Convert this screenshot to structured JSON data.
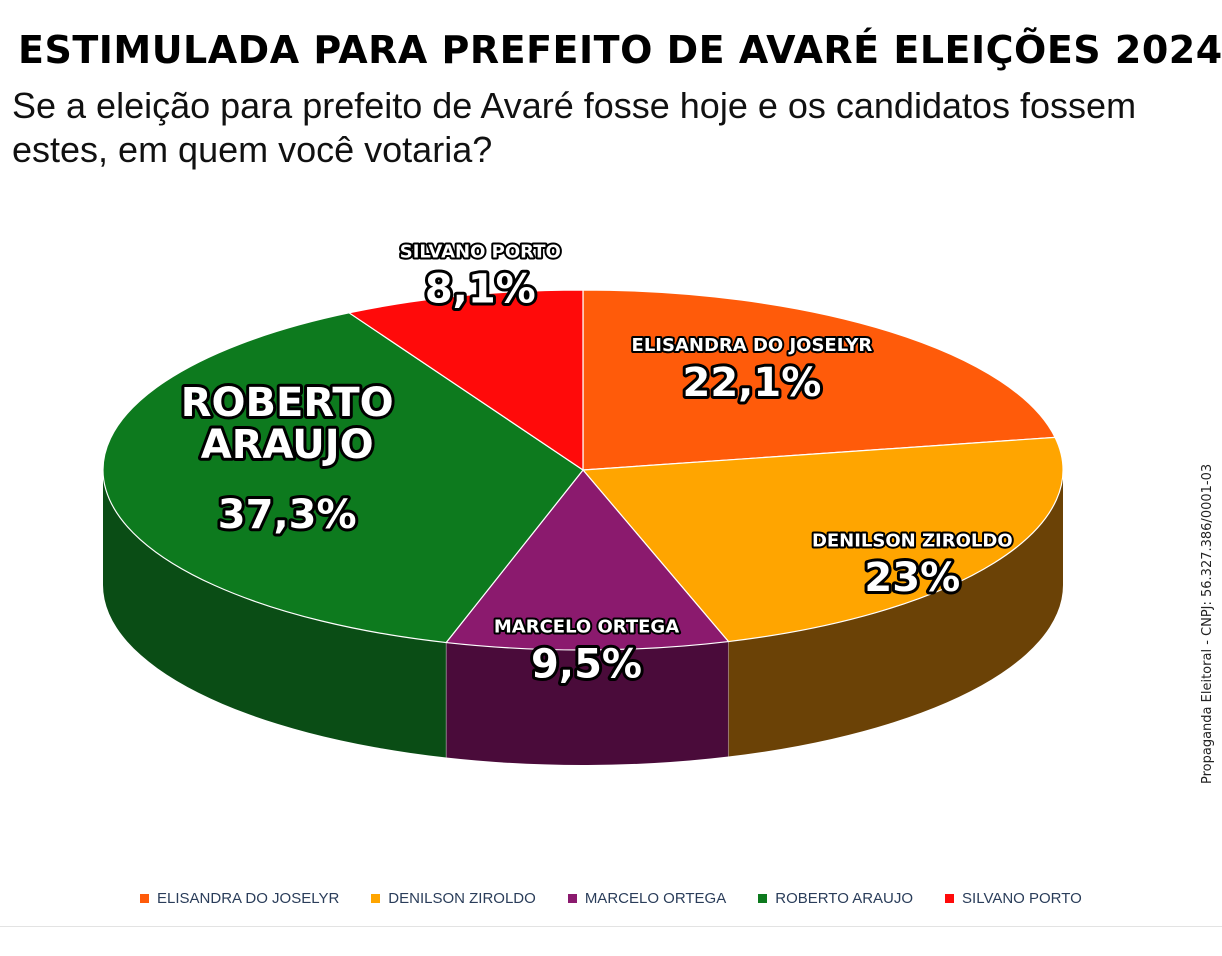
{
  "title": "ESTIMULADA PARA PREFEITO DE AVARÉ ELEIÇÕES 2024",
  "subtitle": "Se a eleição para prefeito de Avaré fosse hoje e os candidatos fossem estes, em quem você votaria?",
  "side_note": "Propaganda Eleitoral - CNPJ: 56.327.386/0001-03",
  "chart_data": {
    "type": "pie",
    "style": "3d",
    "slices": [
      {
        "name": "ELISANDRA DO JOSELYR",
        "value": 22.1,
        "label": "22,1%",
        "color": "#FF5B0A",
        "side_color": "#8a3a10"
      },
      {
        "name": "DENILSON ZIROLDO",
        "value": 23,
        "label": "23%",
        "color": "#FFA500",
        "side_color": "#6b4206"
      },
      {
        "name": "MARCELO ORTEGA",
        "value": 9.5,
        "label": "9,5%",
        "color": "#8B1A6E",
        "side_color": "#4a0b3a"
      },
      {
        "name": "ROBERTO ARAUJO",
        "value": 37.3,
        "label": "37,3%",
        "color": "#0D7A1E",
        "side_color": "#0a4d15"
      },
      {
        "name": "SILVANO PORTO",
        "value": 8.1,
        "label": "8,1%",
        "color": "#FF0A0A",
        "side_color": "#8a0808"
      }
    ],
    "legend_position": "bottom"
  }
}
